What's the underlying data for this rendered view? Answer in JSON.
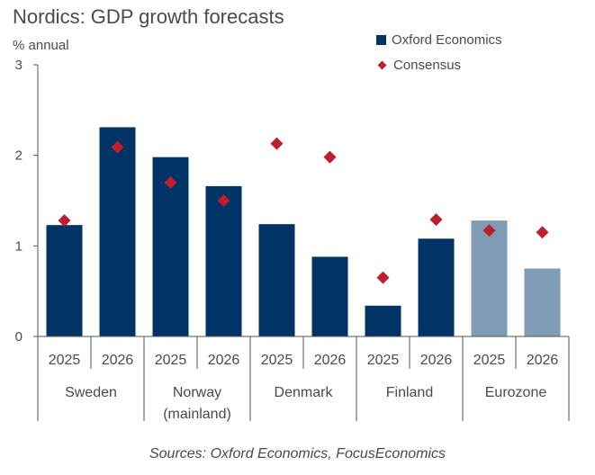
{
  "chart_data": {
    "type": "bar",
    "title": "Nordics: GDP growth forecasts",
    "ylabel": "% annual",
    "xlabel": "",
    "ylim": [
      0,
      3
    ],
    "yticks": [
      "0",
      "1",
      "2",
      "3"
    ],
    "grid": false,
    "legend_position": "top-right",
    "groups": [
      {
        "label": "Sweden",
        "categories": [
          "2025",
          "2026"
        ]
      },
      {
        "label": "Norway (mainland)",
        "label_lines": [
          "Norway",
          "(mainland)"
        ],
        "categories": [
          "2025",
          "2026"
        ]
      },
      {
        "label": "Denmark",
        "categories": [
          "2025",
          "2026"
        ]
      },
      {
        "label": "Finland",
        "categories": [
          "2025",
          "2026"
        ]
      },
      {
        "label": "Eurozone",
        "categories": [
          "2025",
          "2026"
        ]
      }
    ],
    "categories": [
      "Sweden 2025",
      "Sweden 2026",
      "Norway 2025",
      "Norway 2026",
      "Denmark 2025",
      "Denmark 2026",
      "Finland 2025",
      "Finland 2026",
      "Eurozone 2025",
      "Eurozone 2026"
    ],
    "series": [
      {
        "name": "Oxford Economics",
        "kind": "bar",
        "color": "#003366",
        "highlight_color": "#7f9bb5",
        "values": [
          1.23,
          2.31,
          1.98,
          1.66,
          1.24,
          0.88,
          0.34,
          1.08,
          1.28,
          0.75
        ],
        "light": [
          false,
          false,
          false,
          false,
          false,
          false,
          false,
          false,
          true,
          true
        ]
      },
      {
        "name": "Consensus",
        "kind": "marker",
        "marker": "diamond",
        "color": "#be1e2d",
        "values": [
          1.28,
          2.09,
          1.7,
          1.5,
          2.13,
          1.98,
          0.65,
          1.29,
          1.17,
          1.15
        ]
      }
    ],
    "source": "Sources: Oxford Economics, FocusEconomics"
  }
}
